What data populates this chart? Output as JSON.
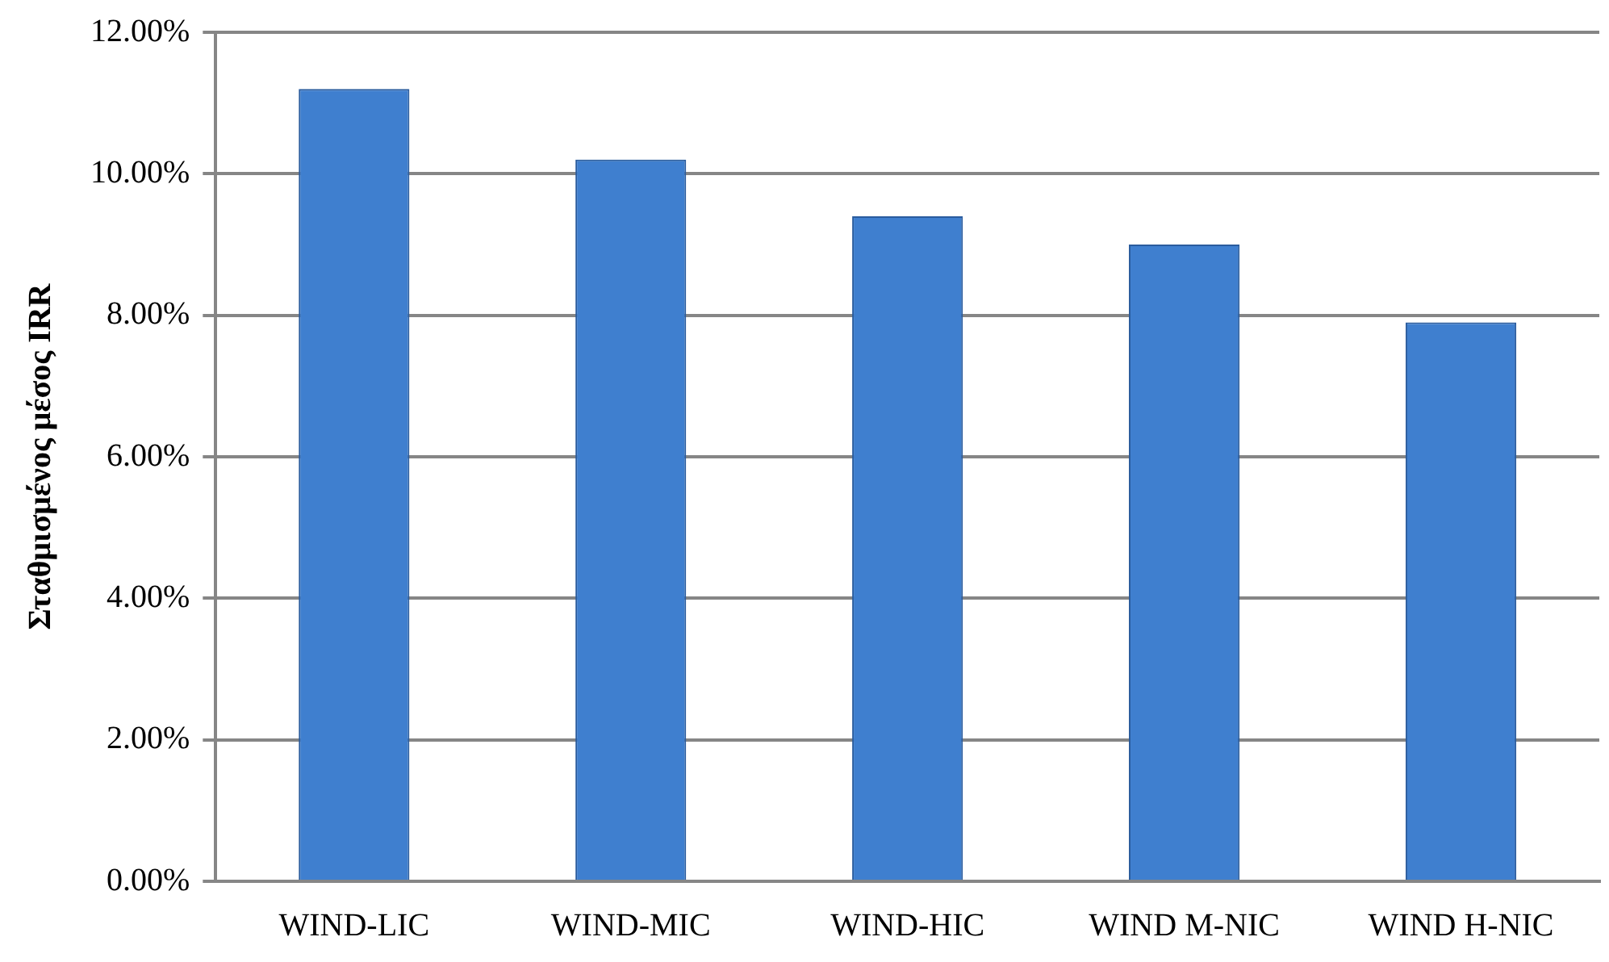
{
  "chart_data": {
    "type": "bar",
    "ylabel": "Σταθμισμένος μέσος IRR",
    "categories": [
      "WIND-LIC",
      "WIND-MIC",
      "WIND-HIC",
      "WIND M-NIC",
      "WIND H-NIC"
    ],
    "values": [
      11.2,
      10.2,
      9.4,
      9.0,
      7.9
    ],
    "color": "#3f7fcf",
    "ylim": [
      0,
      12
    ],
    "yticks": [
      {
        "value": 0,
        "label": "0.00%"
      },
      {
        "value": 2,
        "label": "2.00%"
      },
      {
        "value": 4,
        "label": "4.00%"
      },
      {
        "value": 6,
        "label": "6.00%"
      },
      {
        "value": 8,
        "label": "8.00%"
      },
      {
        "value": 10,
        "label": "10.00%"
      },
      {
        "value": 12,
        "label": "12.00%"
      }
    ],
    "grid": "y",
    "legend": false
  }
}
